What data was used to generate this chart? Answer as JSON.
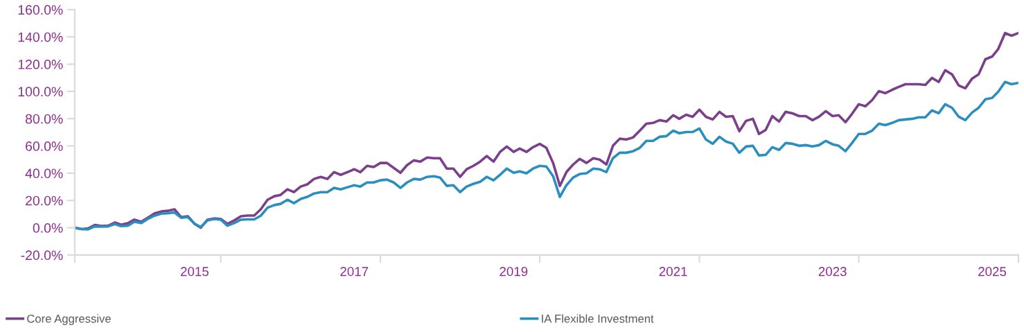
{
  "chart_data": {
    "type": "line",
    "x": [
      "2013-08",
      "2013-09",
      "2013-10",
      "2013-11",
      "2013-12",
      "2014-01",
      "2014-02",
      "2014-03",
      "2014-04",
      "2014-05",
      "2014-06",
      "2014-07",
      "2014-08",
      "2014-09",
      "2014-10",
      "2014-11",
      "2014-12",
      "2015-01",
      "2015-02",
      "2015-03",
      "2015-04",
      "2015-05",
      "2015-06",
      "2015-07",
      "2015-08",
      "2015-09",
      "2015-10",
      "2015-11",
      "2015-12",
      "2016-01",
      "2016-02",
      "2016-03",
      "2016-04",
      "2016-05",
      "2016-06",
      "2016-07",
      "2016-08",
      "2016-09",
      "2016-10",
      "2016-11",
      "2016-12",
      "2017-01",
      "2017-02",
      "2017-03",
      "2017-04",
      "2017-05",
      "2017-06",
      "2017-07",
      "2017-08",
      "2017-09",
      "2017-10",
      "2017-11",
      "2017-12",
      "2018-01",
      "2018-02",
      "2018-03",
      "2018-04",
      "2018-05",
      "2018-06",
      "2018-07",
      "2018-08",
      "2018-09",
      "2018-10",
      "2018-11",
      "2018-12",
      "2019-01",
      "2019-02",
      "2019-03",
      "2019-04",
      "2019-05",
      "2019-06",
      "2019-07",
      "2019-08",
      "2019-09",
      "2019-10",
      "2019-11",
      "2019-12",
      "2020-01",
      "2020-02",
      "2020-03",
      "2020-04",
      "2020-05",
      "2020-06",
      "2020-07",
      "2020-08",
      "2020-09",
      "2020-10",
      "2020-11",
      "2020-12",
      "2021-01",
      "2021-02",
      "2021-03",
      "2021-04",
      "2021-05",
      "2021-06",
      "2021-07",
      "2021-08",
      "2021-09",
      "2021-10",
      "2021-11",
      "2021-12",
      "2022-01",
      "2022-02",
      "2022-03",
      "2022-04",
      "2022-05",
      "2022-06",
      "2022-07",
      "2022-08",
      "2022-09",
      "2022-10",
      "2022-11",
      "2022-12",
      "2023-01",
      "2023-02",
      "2023-03",
      "2023-04",
      "2023-05",
      "2023-06",
      "2023-07",
      "2023-08",
      "2023-09",
      "2023-10",
      "2023-11",
      "2023-12",
      "2024-01",
      "2024-02",
      "2024-03",
      "2024-04",
      "2024-05",
      "2024-06",
      "2024-07",
      "2024-08",
      "2024-09",
      "2024-10",
      "2024-11",
      "2024-12",
      "2025-01",
      "2025-02",
      "2025-03",
      "2025-04",
      "2025-05",
      "2025-06"
    ],
    "series": [
      {
        "name": "Core Aggressive",
        "color": "#7b3f8c",
        "values": [
          0,
          -1,
          -0.5,
          2,
          1.3,
          1.5,
          3.8,
          2.2,
          3.3,
          5.9,
          4.3,
          7.3,
          10.4,
          11.9,
          12.4,
          13.5,
          7.8,
          8.4,
          2.8,
          0,
          5.9,
          6.8,
          6.4,
          2.8,
          5.3,
          8.4,
          8.9,
          8.9,
          13.5,
          20.5,
          23.1,
          24.1,
          28.2,
          26.1,
          30.2,
          31.8,
          35.8,
          37.3,
          35.8,
          40.8,
          38.8,
          40.8,
          42.9,
          40.8,
          45.4,
          44.5,
          47.5,
          47.5,
          43.9,
          40.3,
          45.9,
          49.4,
          48.5,
          51.5,
          51,
          51,
          43.4,
          43.4,
          37.3,
          42.9,
          45.4,
          48.5,
          52.6,
          48.5,
          55.6,
          59.6,
          55.6,
          58.1,
          55.6,
          59.1,
          61.5,
          58.6,
          47.5,
          30.7,
          40.8,
          46.4,
          50.5,
          47.5,
          51,
          50,
          46.4,
          60.1,
          65.3,
          64.7,
          66.2,
          71.2,
          76.3,
          76.9,
          78.9,
          77.9,
          82.5,
          79.9,
          82.9,
          81.4,
          86.6,
          81.4,
          79.4,
          85,
          81.4,
          81.9,
          70.8,
          78.4,
          79.9,
          68.8,
          71.8,
          81.9,
          77.9,
          85,
          83.9,
          81.9,
          81.9,
          78.9,
          81.4,
          85.5,
          81.9,
          82.5,
          77.4,
          83.5,
          90.6,
          89.1,
          93.6,
          100.2,
          98.7,
          101.2,
          103.3,
          105.3,
          105.3,
          105.3,
          104.8,
          109.9,
          106.9,
          115.5,
          112.5,
          104.3,
          102.3,
          109.4,
          112.5,
          123.6,
          125.6,
          131.2,
          142.8,
          140.9,
          142.8
        ]
      },
      {
        "name": "IA Flexible Investment",
        "color": "#2a8fbf",
        "values": [
          0,
          -1,
          -1.2,
          1,
          0.8,
          1,
          2.7,
          1.2,
          1.5,
          4.4,
          3.4,
          6.4,
          8.8,
          10.3,
          10.6,
          11.2,
          7.3,
          7.8,
          2.9,
          0.5,
          5.4,
          6.4,
          5.9,
          1.5,
          3.4,
          5.9,
          6.1,
          6.1,
          8.8,
          14.7,
          16.6,
          17.5,
          20.5,
          18,
          21.1,
          22.6,
          25.1,
          26.1,
          26.1,
          29.2,
          28.1,
          29.7,
          31.2,
          30.2,
          33.2,
          33.2,
          34.8,
          35.3,
          33.2,
          29.2,
          33.2,
          35.8,
          35.3,
          37.3,
          37.8,
          36.8,
          30.7,
          31.2,
          26.1,
          30.2,
          32.2,
          33.7,
          37.3,
          34.8,
          38.8,
          43.4,
          40.3,
          41.3,
          39.9,
          43.4,
          45.4,
          44.9,
          37.8,
          22.6,
          31.2,
          36.8,
          39.4,
          39.9,
          43.4,
          42.9,
          40.8,
          51,
          55,
          55,
          56.1,
          58.6,
          63.7,
          63.7,
          66.7,
          67.2,
          71.2,
          69.3,
          70.2,
          70.2,
          72.8,
          64.7,
          61.6,
          66.7,
          63.2,
          61.6,
          55,
          59.6,
          60.1,
          53,
          53.5,
          59.1,
          57.1,
          62.1,
          61.6,
          60.1,
          60.6,
          59.6,
          60.6,
          63.7,
          61.2,
          60.1,
          56.1,
          62.1,
          68.8,
          68.8,
          71.2,
          76.3,
          75.3,
          76.9,
          78.9,
          79.4,
          79.9,
          81,
          81,
          86.1,
          84,
          90.6,
          88,
          81.4,
          78.9,
          84.5,
          88,
          94.2,
          95.2,
          99.8,
          106.9,
          105.3,
          106.3
        ]
      }
    ],
    "xlim": [
      "2013-08",
      "2025-06"
    ],
    "xticks": [
      {
        "value": "2013-08",
        "label": null
      },
      {
        "value": "2015-02",
        "label": "2015"
      },
      {
        "value": "2015-06",
        "label": null
      },
      {
        "value": "2017-02",
        "label": "2017"
      },
      {
        "value": "2017-06",
        "label": null
      },
      {
        "value": "2019-02",
        "label": "2019"
      },
      {
        "value": "2019-06",
        "label": null
      },
      {
        "value": "2021-02",
        "label": "2021"
      },
      {
        "value": "2021-06",
        "label": null
      },
      {
        "value": "2023-02",
        "label": "2023"
      },
      {
        "value": "2023-06",
        "label": null
      },
      {
        "value": "2025-02",
        "label": "2025"
      },
      {
        "value": "2025-06",
        "label": null
      }
    ],
    "ylim": [
      -20,
      160
    ],
    "yticks": [
      {
        "value": -20,
        "label": "-20.0%"
      },
      {
        "value": 0,
        "label": "0.0%"
      },
      {
        "value": 20,
        "label": "20.0%"
      },
      {
        "value": 40,
        "label": "40.0%"
      },
      {
        "value": 60,
        "label": "60.0%"
      },
      {
        "value": 80,
        "label": "80.0%"
      },
      {
        "value": 100,
        "label": "100.0%"
      },
      {
        "value": 120,
        "label": "120.0%"
      },
      {
        "value": 140,
        "label": "140.0%"
      },
      {
        "value": 160,
        "label": "160.0%"
      }
    ],
    "grid": false,
    "legend": "bottom",
    "marker": "none",
    "line_style": "solid"
  }
}
